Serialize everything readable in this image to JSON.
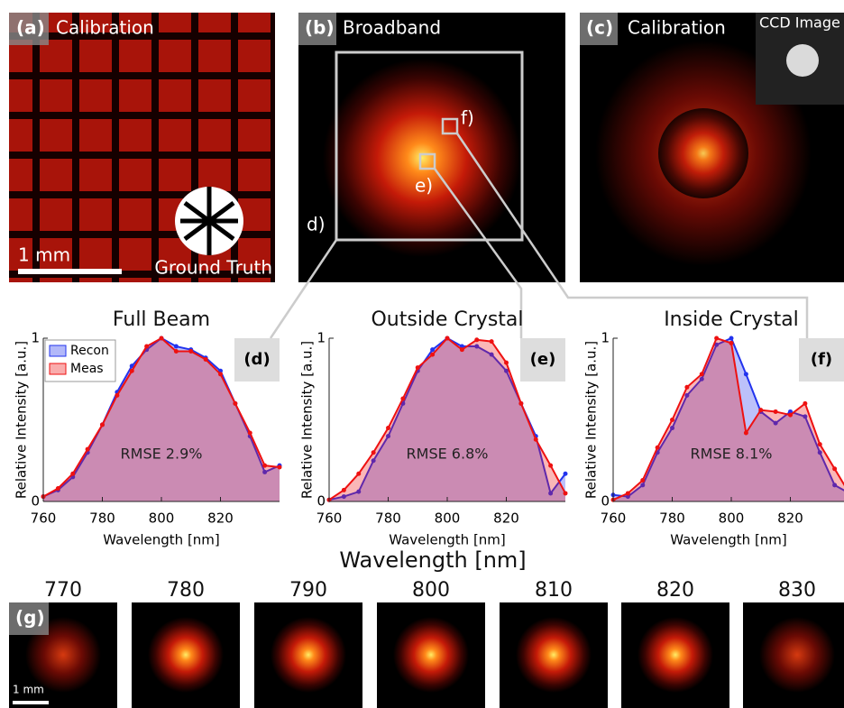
{
  "panels": {
    "a": {
      "label": "(a)",
      "title": "Calibration",
      "scale": "1 mm",
      "inset": "Ground Truth"
    },
    "b": {
      "label": "(b)",
      "title": "Broadband",
      "regions": [
        "d)",
        "e)",
        "f)"
      ]
    },
    "c": {
      "label": "(c)",
      "title": "Calibration",
      "inset": "CCD Image"
    },
    "g": {
      "label": "(g)",
      "scale": "1 mm",
      "wavelengths": [
        770,
        780,
        790,
        800,
        810,
        820,
        830
      ]
    }
  },
  "shared_xlabel": "Wavelength [nm]",
  "chart_data": [
    {
      "type": "area",
      "title": "Full Beam",
      "panel_label": "(d)",
      "annotation": "RMSE 2.9%",
      "xlabel": "Wavelength [nm]",
      "ylabel": "Relative Intensity [a.u.]",
      "legend": "upper left",
      "x": [
        760,
        765,
        770,
        775,
        780,
        785,
        790,
        795,
        800,
        805,
        810,
        815,
        820,
        825,
        830,
        835,
        840
      ],
      "xlim": [
        760,
        840
      ],
      "ylim": [
        0,
        1
      ],
      "xticks": [
        760,
        780,
        800,
        820
      ],
      "yticks": [
        0,
        1
      ],
      "series": [
        {
          "name": "Recon",
          "color": "#2233ee",
          "values": [
            0.03,
            0.07,
            0.15,
            0.3,
            0.47,
            0.67,
            0.83,
            0.93,
            1.0,
            0.95,
            0.93,
            0.88,
            0.8,
            0.6,
            0.4,
            0.18,
            0.22
          ]
        },
        {
          "name": "Meas",
          "color": "#ee1111",
          "values": [
            0.03,
            0.08,
            0.17,
            0.32,
            0.47,
            0.65,
            0.8,
            0.95,
            1.0,
            0.92,
            0.92,
            0.87,
            0.78,
            0.6,
            0.42,
            0.22,
            0.21
          ]
        }
      ]
    },
    {
      "type": "area",
      "title": "Outside Crystal",
      "panel_label": "(e)",
      "annotation": "RMSE 6.8%",
      "xlabel": "Wavelength [nm]",
      "ylabel": "Relative Intensity [a.u.]",
      "x": [
        760,
        765,
        770,
        775,
        780,
        785,
        790,
        795,
        800,
        805,
        810,
        815,
        820,
        825,
        830,
        835,
        840
      ],
      "xlim": [
        760,
        840
      ],
      "ylim": [
        0,
        1
      ],
      "xticks": [
        760,
        780,
        800,
        820
      ],
      "yticks": [
        0,
        1
      ],
      "series": [
        {
          "color": "#2233ee",
          "values": [
            0.01,
            0.03,
            0.06,
            0.25,
            0.4,
            0.6,
            0.8,
            0.93,
            1.0,
            0.95,
            0.95,
            0.9,
            0.8,
            0.6,
            0.4,
            0.05,
            0.17
          ]
        },
        {
          "color": "#ee1111",
          "values": [
            0.01,
            0.07,
            0.17,
            0.3,
            0.45,
            0.63,
            0.82,
            0.9,
            1.0,
            0.93,
            0.99,
            0.98,
            0.85,
            0.6,
            0.38,
            0.22,
            0.05
          ]
        }
      ]
    },
    {
      "type": "area",
      "title": "Inside Crystal",
      "panel_label": "(f)",
      "annotation": "RMSE 8.1%",
      "xlabel": "Wavelength [nm]",
      "ylabel": "Relative Intensity [a.u.]",
      "x": [
        760,
        765,
        770,
        775,
        780,
        785,
        790,
        795,
        800,
        805,
        810,
        815,
        820,
        825,
        830,
        835,
        840
      ],
      "xlim": [
        760,
        840
      ],
      "ylim": [
        0,
        1
      ],
      "xticks": [
        760,
        780,
        800,
        820
      ],
      "yticks": [
        0,
        1
      ],
      "series": [
        {
          "color": "#2233ee",
          "values": [
            0.04,
            0.03,
            0.1,
            0.3,
            0.45,
            0.65,
            0.75,
            0.96,
            1.0,
            0.78,
            0.55,
            0.48,
            0.55,
            0.52,
            0.3,
            0.1,
            0.05
          ]
        },
        {
          "color": "#ee1111",
          "values": [
            0.01,
            0.05,
            0.13,
            0.33,
            0.5,
            0.7,
            0.78,
            1.0,
            0.97,
            0.42,
            0.56,
            0.55,
            0.53,
            0.6,
            0.35,
            0.2,
            0.05
          ]
        }
      ]
    }
  ]
}
